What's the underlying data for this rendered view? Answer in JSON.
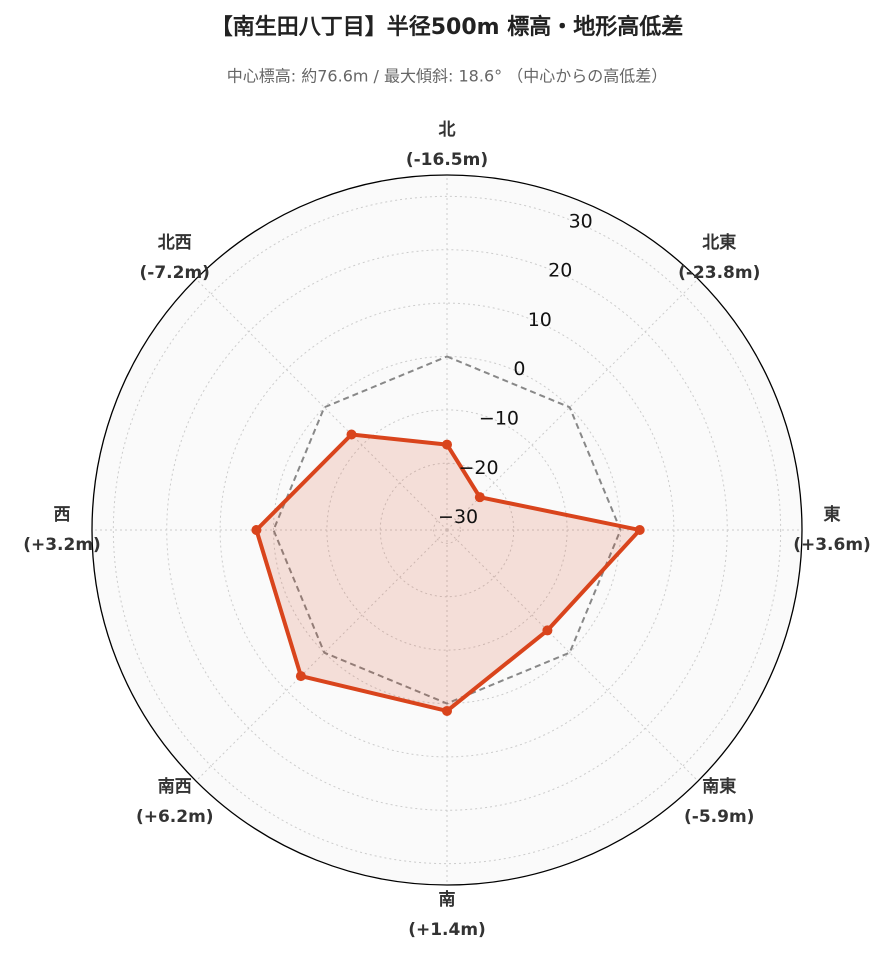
{
  "chart_data": {
    "type": "radar",
    "title": "【南生田八丁目】半径500m 標高・地形高低差",
    "subtitle": "中心標高: 約76.6m / 最大傾斜: 18.6° （中心からの高低差）",
    "categories": [
      "北",
      "北東",
      "東",
      "南東",
      "南",
      "南西",
      "西",
      "北西"
    ],
    "series": [
      {
        "color": "#d9441c",
        "values": [
          -16.5,
          -23.8,
          3.6,
          -5.9,
          1.4,
          6.2,
          3.2,
          -7.2
        ],
        "value_labels": [
          "(-16.5m)",
          "(-23.8m)",
          "(+3.6m)",
          "(-5.9m)",
          "(+1.4m)",
          "(+6.2m)",
          "(+3.2m)",
          "(-7.2m)"
        ]
      }
    ],
    "reference_line": {
      "value": 0,
      "color": "#888888"
    },
    "rlim": [
      -32.5,
      34
    ],
    "rticks": [
      {
        "value": -30,
        "label": "−30"
      },
      {
        "value": -20,
        "label": "−20"
      },
      {
        "value": -10,
        "label": "−10"
      },
      0,
      10,
      20,
      30
    ],
    "grid": true
  }
}
